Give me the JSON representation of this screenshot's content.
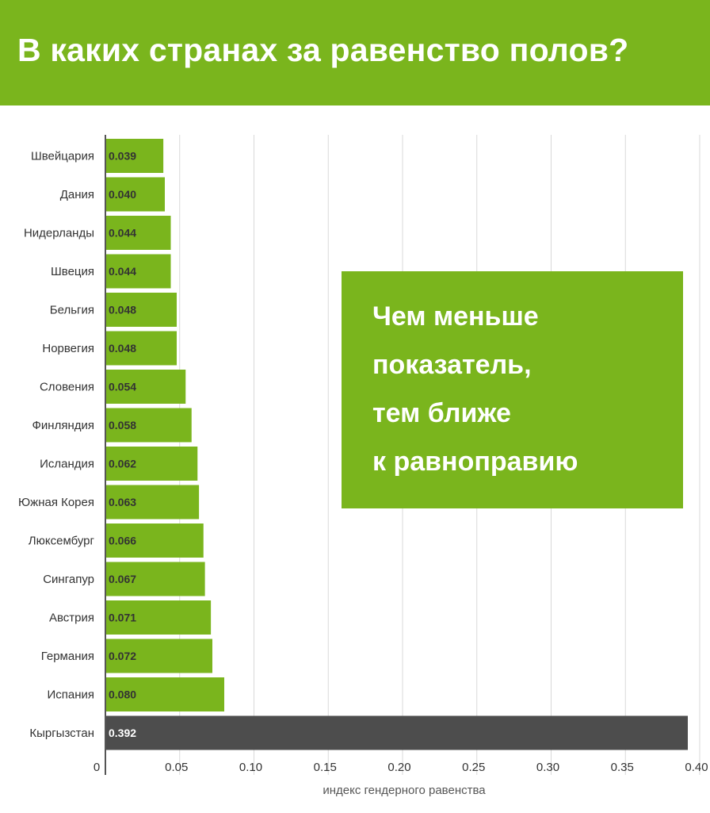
{
  "header": {
    "title": "В каких странах за равенство полов?"
  },
  "callout": {
    "lines": [
      "Чем меньше",
      "показатель,",
      "тем ближе",
      "к равноправию"
    ]
  },
  "colors": {
    "accent": "#7ab51d",
    "highlight_bar": "#4d4d4d",
    "grid": "#d9d9d9",
    "text": "#333333"
  },
  "chart_data": {
    "type": "bar",
    "orientation": "horizontal",
    "categories": [
      "Швейцария",
      "Дания",
      "Нидерланды",
      "Швеция",
      "Бельгия",
      "Норвегия",
      "Словения",
      "Финляндия",
      "Исландия",
      "Южная Корея",
      "Люксембург",
      "Сингапур",
      "Австрия",
      "Германия",
      "Испания",
      "Кыргызстан"
    ],
    "values": [
      0.039,
      0.04,
      0.044,
      0.044,
      0.048,
      0.048,
      0.054,
      0.058,
      0.062,
      0.063,
      0.066,
      0.067,
      0.071,
      0.072,
      0.08,
      0.392
    ],
    "value_labels": [
      "0.039",
      "0.040",
      "0.044",
      "0.044",
      "0.048",
      "0.048",
      "0.054",
      "0.058",
      "0.062",
      "0.063",
      "0.066",
      "0.067",
      "0.071",
      "0.072",
      "0.080",
      "0.392"
    ],
    "highlight_category": "Кыргызстан",
    "xlabel": "индекс гендерного равенства",
    "xlim": [
      0,
      0.4
    ],
    "xticks": [
      0,
      0.05,
      0.1,
      0.15,
      0.2,
      0.25,
      0.3,
      0.35,
      0.4
    ],
    "xtick_labels": [
      "0",
      "0.05",
      "0.10",
      "0.15",
      "0.20",
      "0.25",
      "0.30",
      "0.35",
      "0.40"
    ],
    "grid": true
  }
}
